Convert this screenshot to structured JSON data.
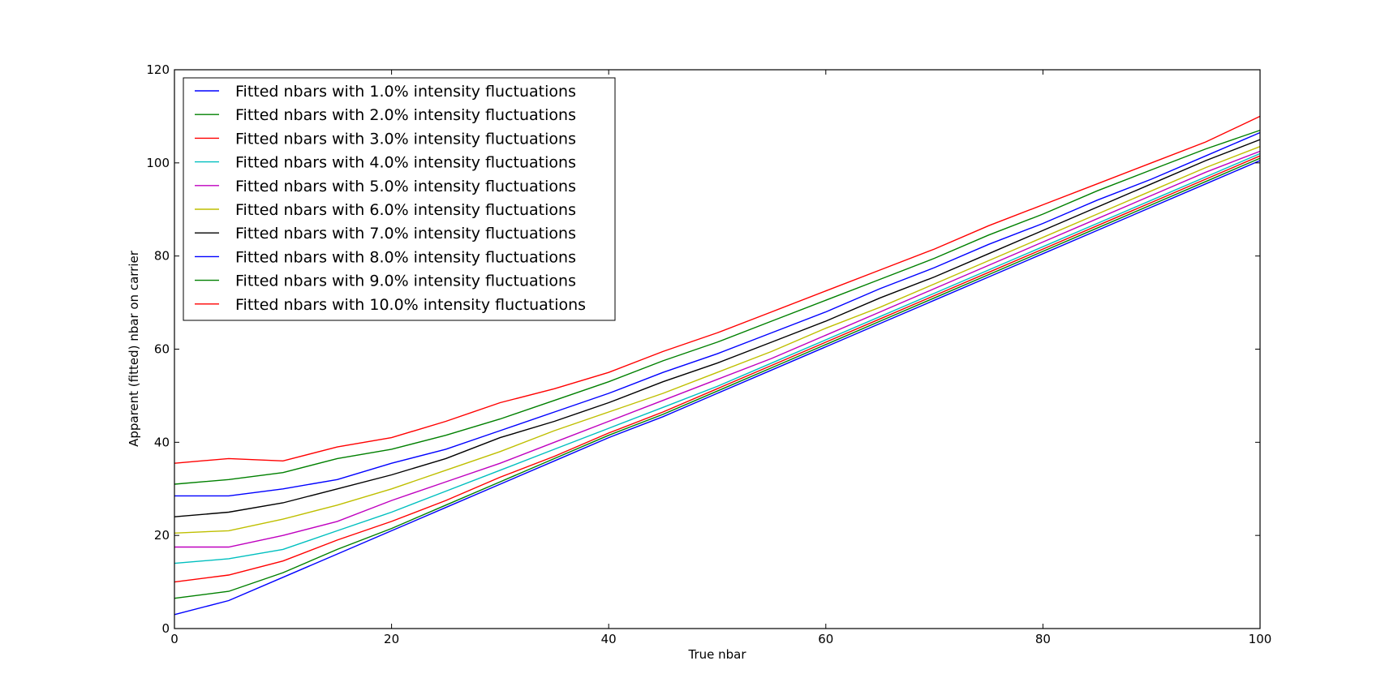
{
  "chart_data": {
    "type": "line",
    "title": "",
    "xlabel": "True nbar",
    "ylabel": "Apparent (fitted) nbar on carrier",
    "xlim": [
      0,
      100
    ],
    "ylim": [
      0,
      120
    ],
    "xticks": [
      0,
      20,
      40,
      60,
      80,
      100
    ],
    "yticks": [
      0,
      20,
      40,
      60,
      80,
      100,
      120
    ],
    "grid": false,
    "legend_position": "top-left",
    "x": [
      0,
      5,
      10,
      15,
      20,
      25,
      30,
      35,
      40,
      45,
      50,
      55,
      60,
      65,
      70,
      75,
      80,
      85,
      90,
      95,
      100
    ],
    "series": [
      {
        "name": "Fitted nbars with 1.0% intensity fluctuations",
        "color": "#0000ff",
        "values": [
          3,
          6,
          11,
          16,
          21,
          26,
          31,
          36,
          41,
          45.5,
          50.5,
          55.5,
          60.5,
          65.5,
          70.5,
          75.5,
          80.5,
          85.5,
          90.5,
          95.5,
          100.5
        ]
      },
      {
        "name": "Fitted nbars with 2.0% intensity fluctuations",
        "color": "#008000",
        "values": [
          6.5,
          8,
          12,
          17,
          21.5,
          26.5,
          31.5,
          36.5,
          41.5,
          46,
          51,
          56,
          61,
          66,
          71,
          76,
          81,
          86,
          91,
          96,
          101
        ]
      },
      {
        "name": "Fitted nbars with 3.0% intensity fluctuations",
        "color": "#ff0000",
        "values": [
          10,
          11.5,
          14.5,
          19,
          23,
          27.5,
          32.5,
          37,
          42,
          46.5,
          51.5,
          56.5,
          61.5,
          66.5,
          71.5,
          76.5,
          81.5,
          86.5,
          91.5,
          96.5,
          101.5
        ]
      },
      {
        "name": "Fitted nbars with 4.0% intensity fluctuations",
        "color": "#00bfbf",
        "values": [
          14,
          15,
          17,
          21,
          25,
          29.5,
          34,
          38.5,
          43,
          47.5,
          52,
          57,
          62,
          67,
          72,
          77,
          82,
          87,
          92,
          97,
          102
        ]
      },
      {
        "name": "Fitted nbars with 5.0% intensity fluctuations",
        "color": "#bf00bf",
        "values": [
          17.5,
          17.5,
          20,
          23,
          27.5,
          31.5,
          35.5,
          40,
          44.5,
          49,
          53.5,
          58,
          63,
          68,
          73,
          78,
          83,
          88,
          93,
          98,
          102.5
        ]
      },
      {
        "name": "Fitted nbars with 6.0% intensity fluctuations",
        "color": "#bfbf00",
        "values": [
          20.5,
          21,
          23.5,
          26.5,
          30,
          34,
          38,
          42.5,
          46.5,
          50.5,
          55,
          59.5,
          64.5,
          69,
          74,
          79,
          84,
          89,
          94,
          99,
          103.5
        ]
      },
      {
        "name": "Fitted nbars with 7.0% intensity fluctuations",
        "color": "#000000",
        "values": [
          24,
          25,
          27,
          30,
          33,
          36.5,
          41,
          44.5,
          48.5,
          53,
          57,
          61.5,
          66,
          71,
          75.5,
          80.5,
          85.5,
          90.5,
          95.5,
          100.5,
          105
        ]
      },
      {
        "name": "Fitted nbars with 8.0% intensity fluctuations",
        "color": "#0000ff",
        "values": [
          28.5,
          28.5,
          30,
          32,
          35.5,
          38.5,
          42.5,
          46.5,
          50.5,
          55,
          59,
          63.5,
          68,
          73,
          77.5,
          82.5,
          87,
          92,
          96.5,
          101.5,
          106.5
        ]
      },
      {
        "name": "Fitted nbars with 9.0% intensity fluctuations",
        "color": "#008000",
        "values": [
          31,
          32,
          33.5,
          36.5,
          38.5,
          41.5,
          45,
          49,
          53,
          57.5,
          61.5,
          66,
          70.5,
          75,
          79.5,
          84.5,
          89,
          94,
          98.5,
          103,
          107
        ]
      },
      {
        "name": "Fitted nbars with 10.0% intensity fluctuations",
        "color": "#ff0000",
        "values": [
          35.5,
          36.5,
          36,
          39,
          41,
          44.5,
          48.5,
          51.5,
          55,
          59.5,
          63.5,
          68,
          72.5,
          77,
          81.5,
          86.5,
          91,
          95.5,
          100,
          104.5,
          110
        ]
      }
    ]
  }
}
